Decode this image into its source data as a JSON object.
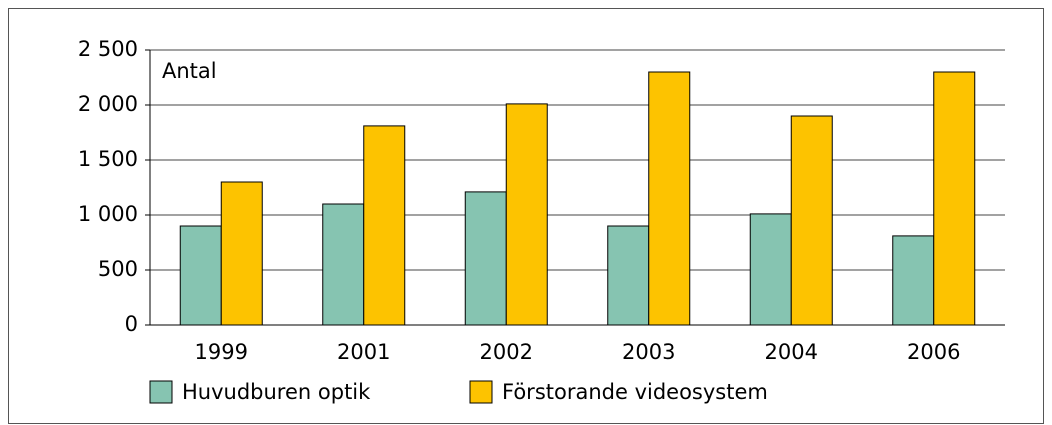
{
  "chart_data": {
    "type": "bar",
    "y_label": "Antal",
    "categories": [
      "1999",
      "2001",
      "2002",
      "2003",
      "2004",
      "2006"
    ],
    "series": [
      {
        "name": "Huvudburen optik",
        "color": "#86c4b1",
        "values": [
          900,
          1100,
          1210,
          900,
          1010,
          810
        ]
      },
      {
        "name": "Förstorande videosystem",
        "color": "#fdc300",
        "values": [
          1300,
          1810,
          2010,
          2300,
          1900,
          2300
        ]
      }
    ],
    "ylim": [
      0,
      2500
    ],
    "yticks": [
      0,
      500,
      {
        "value": 1000,
        "label": "1 000"
      },
      {
        "value": 1500,
        "label": "1 500"
      },
      {
        "value": 2000,
        "label": "2 000"
      },
      {
        "value": 2500,
        "label": "2 500"
      }
    ],
    "grid": true,
    "legend": "bottom"
  }
}
